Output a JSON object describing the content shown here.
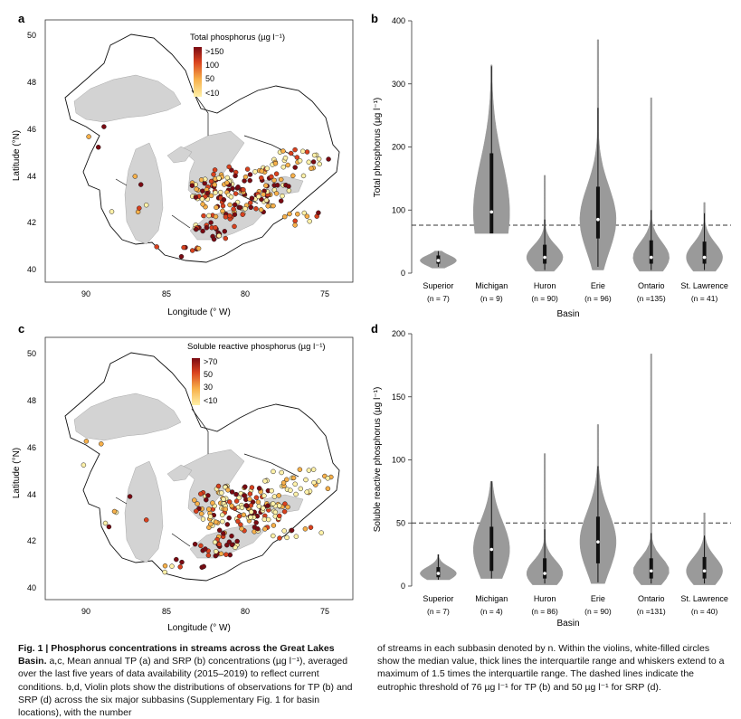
{
  "colors": {
    "tp_scale": [
      "#fff1a8",
      "#f7b04a",
      "#d9411e",
      "#7a0a12"
    ],
    "srp_scale": [
      "#fff1a8",
      "#f7b04a",
      "#d9411e",
      "#7a0a12"
    ],
    "violin_fill": "#9a9a9a",
    "map_water": "#d3d3d3"
  },
  "panels": {
    "a": {
      "letter": "a",
      "legend_title": "Total phosphorus (µg l⁻¹)",
      "legend_labels": [
        ">150",
        "100",
        "50",
        "<10"
      ],
      "xlabel": "Longitude (° W)",
      "ylabel": "Latitude (°N)",
      "xticks": [
        "90",
        "85",
        "80",
        "75"
      ],
      "yticks": [
        "50",
        "48",
        "46",
        "44",
        "42",
        "40"
      ]
    },
    "c": {
      "letter": "c",
      "legend_title": "Soluble reactive phosphorus (µg l⁻¹)",
      "legend_labels": [
        ">70",
        "50",
        "30",
        "<10"
      ],
      "xlabel": "Longitude (° W)",
      "ylabel": "Latitude (°N)",
      "xticks": [
        "90",
        "85",
        "80",
        "75"
      ],
      "yticks": [
        "50",
        "48",
        "46",
        "44",
        "42",
        "40"
      ]
    }
  },
  "chart_data": [
    {
      "panel": "b",
      "type": "violin",
      "letter": "b",
      "xlabel": "Basin",
      "ylabel": "Total phosphorus (µg l⁻¹)",
      "ylim": [
        0,
        400
      ],
      "yticks": [
        "0",
        "100",
        "200",
        "300",
        "400"
      ],
      "threshold": 76,
      "categories": [
        "Superior",
        "Michigan",
        "Huron",
        "Erie",
        "Ontario",
        "St. Lawrence"
      ],
      "n_labels": [
        "(n = 7)",
        "(n = 9)",
        "(n = 90)",
        "(n = 96)",
        "(n =135)",
        "(n = 41)"
      ],
      "stats": [
        {
          "median": 20,
          "q1": 15,
          "q3": 28,
          "wlo": 10,
          "whi": 35,
          "min": 8,
          "max": 35
        },
        {
          "median": 97,
          "q1": 63,
          "q3": 190,
          "wlo": 63,
          "whi": 328,
          "min": 63,
          "max": 330
        },
        {
          "median": 25,
          "q1": 15,
          "q3": 45,
          "wlo": 5,
          "whi": 85,
          "min": 3,
          "max": 155
        },
        {
          "median": 85,
          "q1": 55,
          "q3": 137,
          "wlo": 10,
          "whi": 262,
          "min": 5,
          "max": 370
        },
        {
          "median": 25,
          "q1": 15,
          "q3": 52,
          "wlo": 5,
          "whi": 100,
          "min": 3,
          "max": 278
        },
        {
          "median": 25,
          "q1": 15,
          "q3": 50,
          "wlo": 5,
          "whi": 95,
          "min": 3,
          "max": 112
        }
      ]
    },
    {
      "panel": "d",
      "type": "violin",
      "letter": "d",
      "xlabel": "Basin",
      "ylabel": "Soluble reactive phosphorus (µg l⁻¹)",
      "ylim": [
        0,
        200
      ],
      "yticks": [
        "0",
        "50",
        "100",
        "150",
        "200"
      ],
      "threshold": 50,
      "categories": [
        "Superior",
        "Michigan",
        "Huron",
        "Erie",
        "Ontario",
        "St. Lawrence"
      ],
      "n_labels": [
        "(n = 7)",
        "(n = 4)",
        "(n = 86)",
        "(n = 90)",
        "(n =131)",
        "(n = 40)"
      ],
      "stats": [
        {
          "median": 10,
          "q1": 7,
          "q3": 15,
          "wlo": 5,
          "whi": 25,
          "min": 5,
          "max": 25
        },
        {
          "median": 29,
          "q1": 12,
          "q3": 47,
          "wlo": 6,
          "whi": 83,
          "min": 6,
          "max": 83
        },
        {
          "median": 10,
          "q1": 6,
          "q3": 22,
          "wlo": 2,
          "whi": 45,
          "min": 1,
          "max": 105
        },
        {
          "median": 35,
          "q1": 18,
          "q3": 55,
          "wlo": 3,
          "whi": 95,
          "min": 2,
          "max": 128
        },
        {
          "median": 12,
          "q1": 6,
          "q3": 22,
          "wlo": 2,
          "whi": 42,
          "min": 1,
          "max": 184
        },
        {
          "median": 12,
          "q1": 6,
          "q3": 23,
          "wlo": 2,
          "whi": 40,
          "min": 1,
          "max": 58
        }
      ]
    }
  ],
  "caption": {
    "title": "Fig. 1 | Phosphorus concentrations in streams across the Great Lakes Basin.",
    "left_body": "a,c, Mean annual TP (a) and SRP (b) concentrations (µg l⁻¹), averaged over the last five years of data availability (2015–2019) to reflect current conditions. b,d, Violin plots show the distributions of observations for TP (b) and SRP (d) across the six major subbasins (Supplementary Fig. 1 for basin locations), with the number",
    "right_body": "of streams in each subbasin denoted by n. Within the violins, white-filled circles show the median value, thick lines the interquartile range and whiskers extend to a maximum of 1.5 times the interquartile range. The dashed lines indicate the eutrophic threshold of 76 µg l⁻¹ for TP (b) and 50 µg l⁻¹ for SRP (d)."
  }
}
